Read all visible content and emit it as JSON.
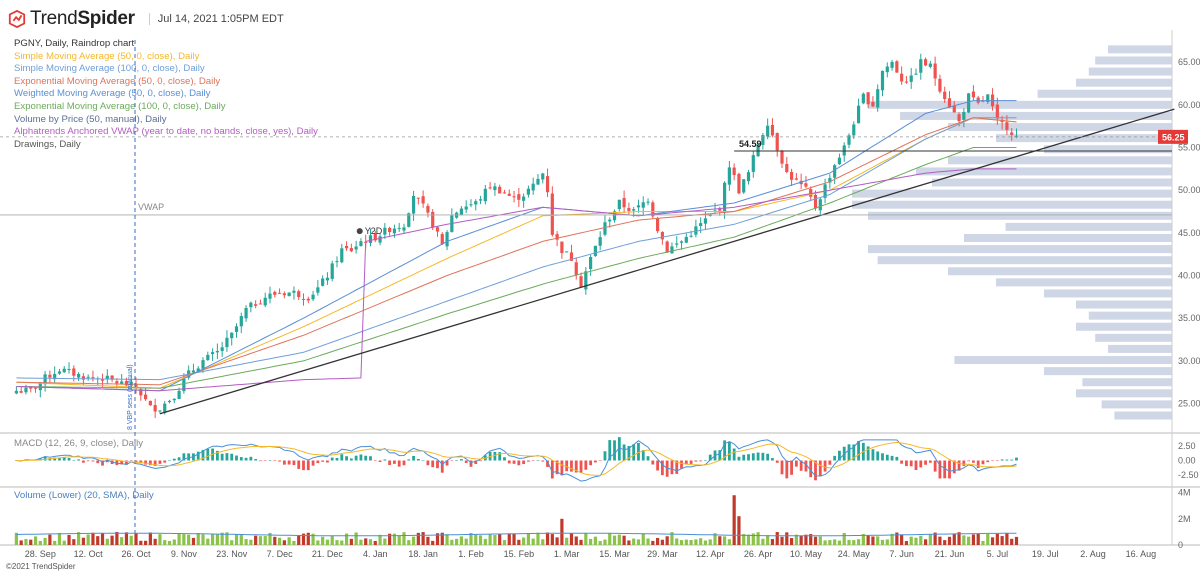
{
  "header": {
    "brand_light": "Trend",
    "brand_bold": "Spider",
    "datetime": "Jul 14, 2021 1:05PM EDT"
  },
  "legend": [
    {
      "label": "PGNY, Daily, Raindrop chart",
      "color": "#333333"
    },
    {
      "label": "Simple Moving Average (50, 0, close), Daily",
      "color": "#f5b829"
    },
    {
      "label": "Simple Moving Average (100, 0, close), Daily",
      "color": "#6f9fd8"
    },
    {
      "label": "Exponential Moving Average (50, 0, close), Daily",
      "color": "#e0735a"
    },
    {
      "label": "Weighted Moving Average (50, 0, close), Daily",
      "color": "#5a8fd6"
    },
    {
      "label": "Exponential Moving Average (100, 0, close), Daily",
      "color": "#6cab5c"
    },
    {
      "label": "Volume by Price (50, manual), Daily",
      "color": "#5a6f95"
    },
    {
      "label": "Alphatrends Anchored VWAP (year to date, no bands, close, yes), Daily",
      "color": "#b45cc4"
    },
    {
      "label": "Drawings, Daily",
      "color": "#555555"
    }
  ],
  "annotations": {
    "vwap": "VWAP",
    "ytd": "Y2D",
    "level": "54.59",
    "vline_label": "8 VBP sess (manual)"
  },
  "macd_label": "MACD (12, 26, 9, close), Daily",
  "volume_label": "Volume (Lower) (20, SMA), Daily",
  "copyright": "©2021 TrendSpider",
  "chart_data": {
    "type": "candlestick",
    "ticker": "PGNY",
    "price_axis": {
      "ticks": [
        "65.00",
        "60.00",
        "55.00",
        "50.00",
        "45.00",
        "40.00",
        "35.00",
        "30.00",
        "25.00"
      ],
      "values": [
        65,
        60,
        55,
        50,
        45,
        40,
        35,
        30,
        25
      ],
      "range": [
        21.9,
        67.6
      ]
    },
    "current_price": "56.25",
    "current_price_color": "#e53935",
    "horizontal_level": 54.59,
    "vwap_level": 47.1,
    "macd_axis": {
      "ticks": [
        "2.50",
        "0.00",
        "-2.50"
      ],
      "values": [
        2.5,
        0,
        -2.5
      ],
      "range": [
        -4,
        4
      ]
    },
    "volume_axis": {
      "ticks": [
        "4M",
        "2M",
        "0"
      ],
      "values": [
        4,
        2,
        0
      ],
      "range": [
        0,
        4.2
      ]
    },
    "x_axis": {
      "ticks": [
        "28. Sep",
        "12. Oct",
        "26. Oct",
        "9. Nov",
        "23. Nov",
        "7. Dec",
        "21. Dec",
        "4. Jan",
        "18. Jan",
        "1. Feb",
        "15. Feb",
        "1. Mar",
        "15. Mar",
        "29. Mar",
        "12. Apr",
        "26. Apr",
        "10. May",
        "24. May",
        "7. Jun",
        "21. Jun",
        "5. Jul",
        "19. Jul",
        "2. Aug",
        "16. Aug"
      ],
      "bar_index": [
        5,
        15,
        25,
        35,
        45,
        55,
        65,
        75,
        85,
        95,
        105,
        115,
        125,
        135,
        145,
        155,
        165,
        175,
        185,
        195,
        205,
        215,
        225,
        235
      ]
    },
    "bars_total": 242,
    "close_anchors": [
      [
        0,
        26.5
      ],
      [
        3,
        26.5
      ],
      [
        6,
        28
      ],
      [
        9,
        29
      ],
      [
        12,
        28.5
      ],
      [
        15,
        28
      ],
      [
        18,
        28
      ],
      [
        21,
        27.5
      ],
      [
        25,
        27
      ],
      [
        28,
        24.5
      ],
      [
        30,
        24.5
      ],
      [
        33,
        26
      ],
      [
        36,
        28.5
      ],
      [
        39,
        30
      ],
      [
        42,
        31
      ],
      [
        45,
        33
      ],
      [
        48,
        36
      ],
      [
        52,
        37.5
      ],
      [
        55,
        38
      ],
      [
        58,
        38
      ],
      [
        61,
        37.5
      ],
      [
        63,
        38.5
      ],
      [
        65,
        40
      ],
      [
        68,
        43
      ],
      [
        70,
        43
      ],
      [
        72,
        44
      ],
      [
        75,
        44.5
      ],
      [
        78,
        45.5
      ],
      [
        81,
        46
      ],
      [
        83,
        49.5
      ],
      [
        85,
        48
      ],
      [
        87,
        46
      ],
      [
        89,
        43.5
      ],
      [
        91,
        47
      ],
      [
        93,
        48
      ],
      [
        96,
        48.5
      ],
      [
        99,
        50.5
      ],
      [
        101,
        50
      ],
      [
        104,
        49
      ],
      [
        106,
        49.5
      ],
      [
        108,
        50.5
      ],
      [
        110,
        52
      ],
      [
        111,
        50
      ],
      [
        112,
        45
      ],
      [
        114,
        43
      ],
      [
        116,
        42
      ],
      [
        118,
        39
      ],
      [
        120,
        42
      ],
      [
        123,
        46
      ],
      [
        126,
        48.5
      ],
      [
        129,
        47.5
      ],
      [
        132,
        49
      ],
      [
        134,
        45.5
      ],
      [
        136,
        43
      ],
      [
        139,
        44
      ],
      [
        142,
        45.5
      ],
      [
        145,
        47
      ],
      [
        147,
        48
      ],
      [
        149,
        53
      ],
      [
        151,
        50
      ],
      [
        153,
        52
      ],
      [
        155,
        55.5
      ],
      [
        157,
        58
      ],
      [
        159,
        55
      ],
      [
        161,
        52
      ],
      [
        163,
        51
      ],
      [
        165,
        50
      ],
      [
        167,
        48
      ],
      [
        169,
        50.5
      ],
      [
        171,
        53
      ],
      [
        173,
        55
      ],
      [
        175,
        58
      ],
      [
        177,
        61
      ],
      [
        179,
        60
      ],
      [
        181,
        64
      ],
      [
        183,
        65
      ],
      [
        185,
        63
      ],
      [
        187,
        63
      ],
      [
        189,
        65
      ],
      [
        191,
        64.5
      ],
      [
        193,
        62
      ],
      [
        195,
        60
      ],
      [
        197,
        58
      ],
      [
        199,
        61
      ],
      [
        201,
        60
      ],
      [
        203,
        61
      ],
      [
        205,
        58
      ],
      [
        207,
        57.5
      ],
      [
        209,
        56.25
      ]
    ],
    "ma_series": [
      {
        "color": "#f5b829",
        "points": [
          [
            0,
            27.5
          ],
          [
            30,
            26.8
          ],
          [
            60,
            34
          ],
          [
            90,
            42
          ],
          [
            110,
            47
          ],
          [
            130,
            47.5
          ],
          [
            150,
            47.5
          ],
          [
            170,
            50
          ],
          [
            190,
            56
          ],
          [
            200,
            58.5
          ],
          [
            209,
            58
          ]
        ]
      },
      {
        "color": "#6f9fd8",
        "points": [
          [
            0,
            28
          ],
          [
            30,
            27.8
          ],
          [
            60,
            31
          ],
          [
            90,
            37
          ],
          [
            110,
            41
          ],
          [
            130,
            44
          ],
          [
            150,
            46
          ],
          [
            170,
            49.5
          ],
          [
            190,
            56
          ],
          [
            200,
            58.5
          ],
          [
            209,
            58.5
          ]
        ]
      },
      {
        "color": "#e0735a",
        "points": [
          [
            0,
            27.5
          ],
          [
            30,
            27.2
          ],
          [
            60,
            33
          ],
          [
            90,
            40
          ],
          [
            110,
            44
          ],
          [
            130,
            46.5
          ],
          [
            150,
            47.5
          ],
          [
            170,
            51
          ],
          [
            190,
            56.5
          ],
          [
            200,
            58.5
          ],
          [
            209,
            58
          ]
        ]
      },
      {
        "color": "#5a8fd6",
        "points": [
          [
            0,
            27
          ],
          [
            30,
            26.5
          ],
          [
            60,
            35
          ],
          [
            90,
            44
          ],
          [
            110,
            48
          ],
          [
            130,
            47
          ],
          [
            150,
            48.5
          ],
          [
            170,
            52
          ],
          [
            190,
            59
          ],
          [
            200,
            60.5
          ],
          [
            209,
            60.5
          ]
        ]
      },
      {
        "color": "#6cab5c",
        "points": [
          [
            0,
            27
          ],
          [
            30,
            26.8
          ],
          [
            60,
            30
          ],
          [
            90,
            35.5
          ],
          [
            110,
            39
          ],
          [
            130,
            42
          ],
          [
            150,
            44.5
          ],
          [
            170,
            48.5
          ],
          [
            190,
            53
          ],
          [
            200,
            55
          ],
          [
            209,
            55
          ]
        ]
      },
      {
        "color": "#b45cc4",
        "points": [
          [
            0,
            27
          ],
          [
            30,
            26.5
          ],
          [
            60,
            27.8
          ],
          [
            72,
            28
          ],
          [
            73,
            44
          ],
          [
            90,
            46
          ],
          [
            110,
            48
          ],
          [
            130,
            47
          ],
          [
            150,
            48
          ],
          [
            170,
            50
          ],
          [
            190,
            52
          ],
          [
            200,
            52.5
          ],
          [
            209,
            52.5
          ]
        ]
      }
    ],
    "trendline": {
      "color": "#333333",
      "from": [
        30,
        23.8
      ],
      "to": [
        242,
        59.5
      ]
    },
    "vbp_bins": [
      {
        "price": 66.5,
        "width": 0.2
      },
      {
        "price": 65.2,
        "width": 0.24
      },
      {
        "price": 63.9,
        "width": 0.26
      },
      {
        "price": 62.6,
        "width": 0.3
      },
      {
        "price": 61.3,
        "width": 0.42
      },
      {
        "price": 60.0,
        "width": 0.95
      },
      {
        "price": 58.7,
        "width": 0.85
      },
      {
        "price": 57.4,
        "width": 0.7
      },
      {
        "price": 56.1,
        "width": 0.55
      },
      {
        "price": 54.8,
        "width": 0.4
      },
      {
        "price": 53.5,
        "width": 0.7
      },
      {
        "price": 52.2,
        "width": 0.8
      },
      {
        "price": 50.9,
        "width": 0.75
      },
      {
        "price": 49.6,
        "width": 1.0
      },
      {
        "price": 48.3,
        "width": 1.0
      },
      {
        "price": 47.0,
        "width": 0.95
      },
      {
        "price": 45.7,
        "width": 0.52
      },
      {
        "price": 44.4,
        "width": 0.65
      },
      {
        "price": 43.1,
        "width": 0.95
      },
      {
        "price": 41.8,
        "width": 0.92
      },
      {
        "price": 40.5,
        "width": 0.7
      },
      {
        "price": 39.2,
        "width": 0.55
      },
      {
        "price": 37.9,
        "width": 0.4
      },
      {
        "price": 36.6,
        "width": 0.3
      },
      {
        "price": 35.3,
        "width": 0.26
      },
      {
        "price": 34.0,
        "width": 0.3
      },
      {
        "price": 32.7,
        "width": 0.24
      },
      {
        "price": 31.4,
        "width": 0.2
      },
      {
        "price": 30.1,
        "width": 0.68
      },
      {
        "price": 28.8,
        "width": 0.4
      },
      {
        "price": 27.5,
        "width": 0.28
      },
      {
        "price": 26.2,
        "width": 0.3
      },
      {
        "price": 24.9,
        "width": 0.22
      },
      {
        "price": 23.6,
        "width": 0.18
      }
    ]
  }
}
